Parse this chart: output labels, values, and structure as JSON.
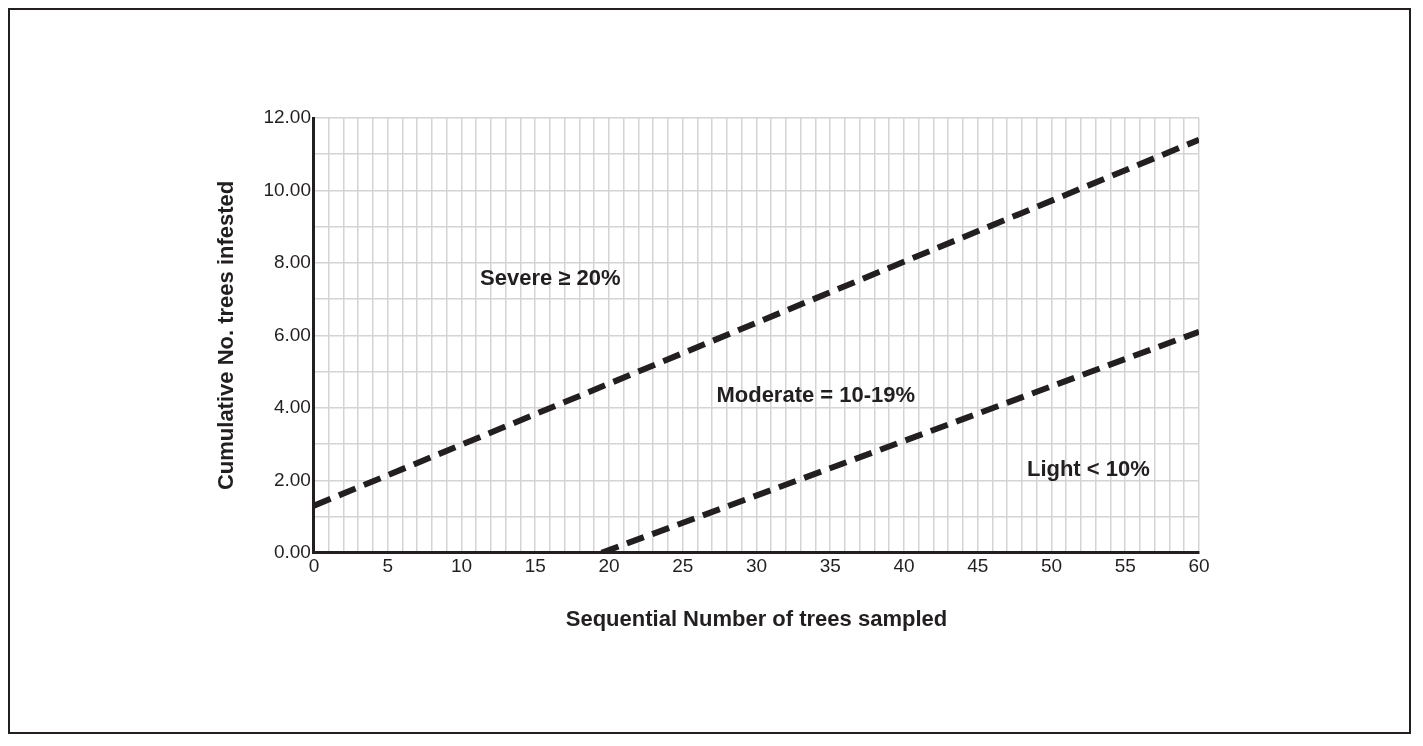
{
  "chart_data": {
    "type": "line",
    "xlabel": "Sequential Number of trees sampled",
    "ylabel": "Cumulative No. trees infested",
    "xlim": [
      0,
      60
    ],
    "xticks": [
      0,
      {
        "value": 1,
        "label": null
      },
      {
        "value": 2,
        "label": null
      },
      {
        "value": 3,
        "label": null
      },
      {
        "value": 4,
        "label": null
      },
      5,
      {
        "value": 6,
        "label": null
      },
      {
        "value": 7,
        "label": null
      },
      {
        "value": 8,
        "label": null
      },
      {
        "value": 9,
        "label": null
      },
      10,
      {
        "value": 11,
        "label": null
      },
      {
        "value": 12,
        "label": null
      },
      {
        "value": 13,
        "label": null
      },
      {
        "value": 14,
        "label": null
      },
      15,
      {
        "value": 16,
        "label": null
      },
      {
        "value": 17,
        "label": null
      },
      {
        "value": 18,
        "label": null
      },
      {
        "value": 19,
        "label": null
      },
      20,
      {
        "value": 21,
        "label": null
      },
      {
        "value": 22,
        "label": null
      },
      {
        "value": 23,
        "label": null
      },
      {
        "value": 24,
        "label": null
      },
      25,
      {
        "value": 26,
        "label": null
      },
      {
        "value": 27,
        "label": null
      },
      {
        "value": 28,
        "label": null
      },
      {
        "value": 29,
        "label": null
      },
      30,
      {
        "value": 31,
        "label": null
      },
      {
        "value": 32,
        "label": null
      },
      {
        "value": 33,
        "label": null
      },
      {
        "value": 34,
        "label": null
      },
      35,
      {
        "value": 36,
        "label": null
      },
      {
        "value": 37,
        "label": null
      },
      {
        "value": 38,
        "label": null
      },
      {
        "value": 39,
        "label": null
      },
      40,
      {
        "value": 41,
        "label": null
      },
      {
        "value": 42,
        "label": null
      },
      {
        "value": 43,
        "label": null
      },
      {
        "value": 44,
        "label": null
      },
      45,
      {
        "value": 46,
        "label": null
      },
      {
        "value": 47,
        "label": null
      },
      {
        "value": 48,
        "label": null
      },
      {
        "value": 49,
        "label": null
      },
      50,
      {
        "value": 51,
        "label": null
      },
      {
        "value": 52,
        "label": null
      },
      {
        "value": 53,
        "label": null
      },
      {
        "value": 54,
        "label": null
      },
      55,
      {
        "value": 56,
        "label": null
      },
      {
        "value": 57,
        "label": null
      },
      {
        "value": 58,
        "label": null
      },
      {
        "value": 59,
        "label": null
      },
      60
    ],
    "ylim": [
      0,
      12
    ],
    "yticks": [
      {
        "value": 0,
        "label": "0.00"
      },
      {
        "value": 1,
        "label": null
      },
      {
        "value": 2,
        "label": "2.00"
      },
      {
        "value": 3,
        "label": null
      },
      {
        "value": 4,
        "label": "4.00"
      },
      {
        "value": 5,
        "label": null
      },
      {
        "value": 6,
        "label": "6.00"
      },
      {
        "value": 7,
        "label": null
      },
      {
        "value": 8,
        "label": "8.00"
      },
      {
        "value": 9,
        "label": null
      },
      {
        "value": 10,
        "label": "10.00"
      },
      {
        "value": 11,
        "label": null
      },
      {
        "value": 12,
        "label": "12.00"
      }
    ],
    "grid": true,
    "legend": false,
    "marker": "none",
    "line_style": "dashed",
    "series": [
      {
        "color": "#231f20",
        "x": [
          0,
          60
        ],
        "values": [
          1.3,
          11.4
        ]
      },
      {
        "color": "#231f20",
        "x": [
          19.5,
          60
        ],
        "values": [
          0,
          6.1
        ]
      }
    ],
    "annotations": [
      "Severe ≥ 20%",
      "Moderate = 10-19%",
      "Light < 10%"
    ]
  }
}
